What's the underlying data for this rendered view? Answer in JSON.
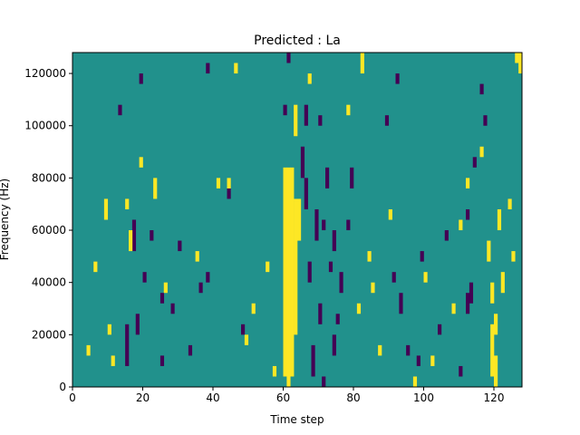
{
  "chart_data": {
    "type": "heatmap",
    "title": "Predicted : La",
    "xlabel": "Time step",
    "ylabel": "Frequency (Hz)",
    "xlim": [
      0,
      128
    ],
    "ylim": [
      0,
      128000
    ],
    "x_ticks": [
      0,
      20,
      40,
      60,
      80,
      100,
      120
    ],
    "x_tick_labels": [
      "0",
      "20",
      "40",
      "60",
      "80",
      "100",
      "120"
    ],
    "y_ticks": [
      0,
      20000,
      40000,
      60000,
      80000,
      100000,
      120000
    ],
    "y_tick_labels": [
      "0",
      "20000",
      "40000",
      "60000",
      "80000",
      "100000",
      "120000"
    ],
    "colormap": "viridis (3 levels)",
    "colors": {
      "low": "#440154",
      "mid": "#21918c",
      "high": "#fde725"
    },
    "background_level": "mid",
    "grid": false,
    "legend": false,
    "cells_note": "binary mask over time x frequency; listed cells deviate from the mid background",
    "cell_size": {
      "time_steps": 1,
      "frequency_hz": 4000
    },
    "high_cells": [
      [
        60,
        4000,
        84000
      ],
      [
        61,
        0,
        84000
      ],
      [
        62,
        4000,
        84000
      ],
      [
        63,
        20000,
        72000
      ],
      [
        64,
        56000,
        72000
      ],
      [
        63,
        96000,
        108000
      ],
      [
        15,
        68000,
        72000
      ],
      [
        16,
        52000,
        60000
      ],
      [
        9,
        64000,
        72000
      ],
      [
        10,
        20000,
        24000
      ],
      [
        11,
        8000,
        12000
      ],
      [
        4,
        12000,
        16000
      ],
      [
        6,
        44000,
        48000
      ],
      [
        19,
        84000,
        88000
      ],
      [
        23,
        72000,
        80000
      ],
      [
        26,
        36000,
        40000
      ],
      [
        35,
        48000,
        52000
      ],
      [
        41,
        76000,
        80000
      ],
      [
        44,
        76000,
        80000
      ],
      [
        49,
        16000,
        20000
      ],
      [
        51,
        28000,
        32000
      ],
      [
        55,
        44000,
        48000
      ],
      [
        57,
        4000,
        8000
      ],
      [
        46,
        120000,
        124000
      ],
      [
        67,
        116000,
        120000
      ],
      [
        78,
        104000,
        108000
      ],
      [
        84,
        48000,
        52000
      ],
      [
        85,
        36000,
        40000
      ],
      [
        81,
        28000,
        32000
      ],
      [
        87,
        12000,
        16000
      ],
      [
        90,
        64000,
        68000
      ],
      [
        97,
        0,
        4000
      ],
      [
        100,
        40000,
        44000
      ],
      [
        102,
        8000,
        12000
      ],
      [
        108,
        28000,
        32000
      ],
      [
        110,
        60000,
        64000
      ],
      [
        112,
        76000,
        80000
      ],
      [
        116,
        88000,
        92000
      ],
      [
        118,
        48000,
        56000
      ],
      [
        119,
        32000,
        40000
      ],
      [
        120,
        20000,
        28000
      ],
      [
        121,
        60000,
        68000
      ],
      [
        122,
        36000,
        44000
      ],
      [
        125,
        48000,
        52000
      ],
      [
        127,
        120000,
        128000
      ],
      [
        126,
        124000,
        128000
      ],
      [
        119,
        4000,
        24000
      ],
      [
        120,
        0,
        12000
      ],
      [
        124,
        68000,
        72000
      ],
      [
        82,
        120000,
        128000
      ]
    ],
    "low_cells": [
      [
        65,
        80000,
        92000
      ],
      [
        66,
        68000,
        80000
      ],
      [
        67,
        40000,
        48000
      ],
      [
        68,
        4000,
        16000
      ],
      [
        69,
        56000,
        68000
      ],
      [
        70,
        24000,
        32000
      ],
      [
        71,
        60000,
        64000
      ],
      [
        72,
        76000,
        84000
      ],
      [
        73,
        44000,
        48000
      ],
      [
        74,
        52000,
        60000
      ],
      [
        75,
        24000,
        28000
      ],
      [
        76,
        36000,
        44000
      ],
      [
        78,
        60000,
        64000
      ],
      [
        79,
        76000,
        84000
      ],
      [
        71,
        0,
        4000
      ],
      [
        74,
        12000,
        20000
      ],
      [
        66,
        100000,
        108000
      ],
      [
        70,
        100000,
        104000
      ],
      [
        17,
        52000,
        64000
      ],
      [
        18,
        20000,
        28000
      ],
      [
        20,
        40000,
        44000
      ],
      [
        22,
        56000,
        60000
      ],
      [
        25,
        32000,
        36000
      ],
      [
        28,
        28000,
        32000
      ],
      [
        30,
        52000,
        56000
      ],
      [
        33,
        12000,
        16000
      ],
      [
        36,
        36000,
        40000
      ],
      [
        38,
        40000,
        44000
      ],
      [
        44,
        72000,
        76000
      ],
      [
        48,
        20000,
        24000
      ],
      [
        19,
        116000,
        120000
      ],
      [
        13,
        104000,
        108000
      ],
      [
        38,
        120000,
        124000
      ],
      [
        61,
        124000,
        128000
      ],
      [
        60,
        104000,
        108000
      ],
      [
        91,
        40000,
        44000
      ],
      [
        93,
        28000,
        36000
      ],
      [
        95,
        12000,
        16000
      ],
      [
        99,
        48000,
        52000
      ],
      [
        104,
        20000,
        24000
      ],
      [
        106,
        56000,
        60000
      ],
      [
        110,
        4000,
        8000
      ],
      [
        112,
        64000,
        68000
      ],
      [
        113,
        32000,
        40000
      ],
      [
        114,
        84000,
        88000
      ],
      [
        116,
        112000,
        116000
      ],
      [
        117,
        100000,
        104000
      ],
      [
        112,
        28000,
        36000
      ],
      [
        89,
        100000,
        104000
      ],
      [
        92,
        116000,
        120000
      ],
      [
        15,
        8000,
        24000
      ],
      [
        25,
        8000,
        12000
      ],
      [
        98,
        8000,
        12000
      ]
    ]
  }
}
